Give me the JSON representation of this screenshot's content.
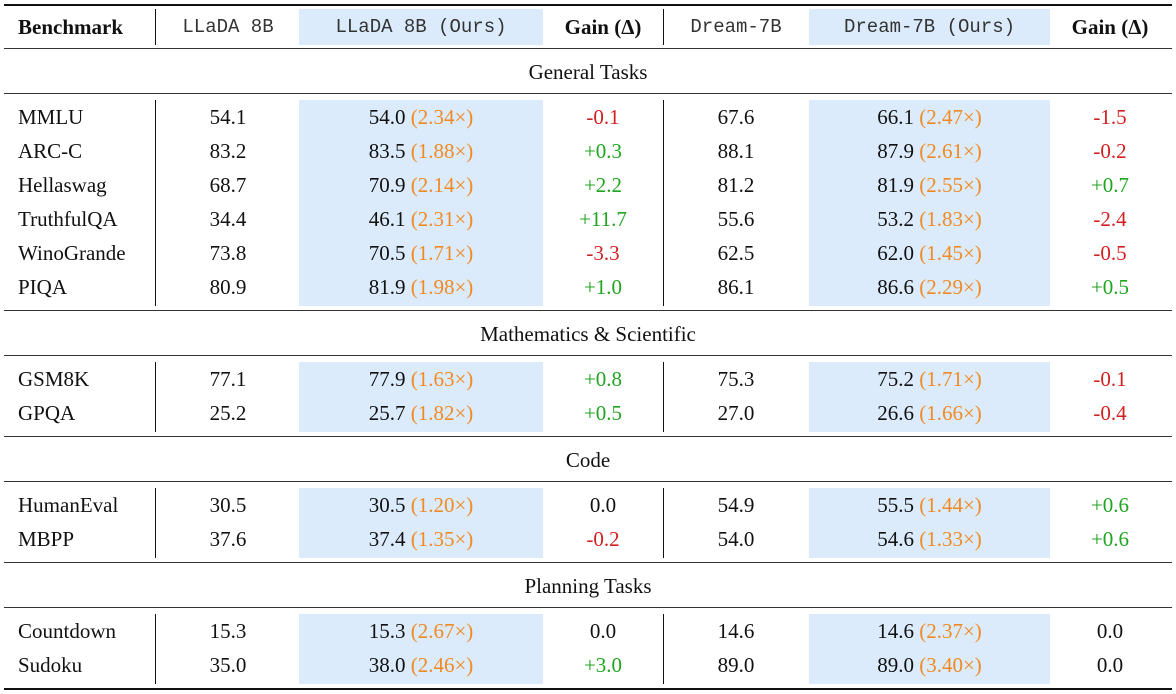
{
  "table": {
    "headers": {
      "benchmark": "Benchmark",
      "llada": "LLaDA 8B",
      "llada_ours": "LLaDA 8B (Ours)",
      "gain1": "Gain (Δ)",
      "dream": "Dream-7B",
      "dream_ours": "Dream-7B (Ours)",
      "gain2": "Gain (Δ)"
    },
    "sections": [
      {
        "title": "General Tasks",
        "rows": [
          {
            "name": "MMLU",
            "llada": "54.1",
            "llada_ours": "54.0",
            "llada_speed": "(2.34×)",
            "gain1": "-0.1",
            "dream": "67.6",
            "dream_ours": "66.1",
            "dream_speed": "(2.47×)",
            "gain2": "-1.5"
          },
          {
            "name": "ARC-C",
            "llada": "83.2",
            "llada_ours": "83.5",
            "llada_speed": "(1.88×)",
            "gain1": "+0.3",
            "dream": "88.1",
            "dream_ours": "87.9",
            "dream_speed": "(2.61×)",
            "gain2": "-0.2"
          },
          {
            "name": "Hellaswag",
            "llada": "68.7",
            "llada_ours": "70.9",
            "llada_speed": "(2.14×)",
            "gain1": "+2.2",
            "dream": "81.2",
            "dream_ours": "81.9",
            "dream_speed": "(2.55×)",
            "gain2": "+0.7"
          },
          {
            "name": "TruthfulQA",
            "llada": "34.4",
            "llada_ours": "46.1",
            "llada_speed": "(2.31×)",
            "gain1": "+11.7",
            "dream": "55.6",
            "dream_ours": "53.2",
            "dream_speed": "(1.83×)",
            "gain2": "-2.4"
          },
          {
            "name": "WinoGrande",
            "llada": "73.8",
            "llada_ours": "70.5",
            "llada_speed": "(1.71×)",
            "gain1": "-3.3",
            "dream": "62.5",
            "dream_ours": "62.0",
            "dream_speed": "(1.45×)",
            "gain2": "-0.5"
          },
          {
            "name": "PIQA",
            "llada": "80.9",
            "llada_ours": "81.9",
            "llada_speed": "(1.98×)",
            "gain1": "+1.0",
            "dream": "86.1",
            "dream_ours": "86.6",
            "dream_speed": "(2.29×)",
            "gain2": "+0.5"
          }
        ]
      },
      {
        "title": "Mathematics & Scientific",
        "rows": [
          {
            "name": "GSM8K",
            "llada": "77.1",
            "llada_ours": "77.9",
            "llada_speed": "(1.63×)",
            "gain1": "+0.8",
            "dream": "75.3",
            "dream_ours": "75.2",
            "dream_speed": "(1.71×)",
            "gain2": "-0.1"
          },
          {
            "name": "GPQA",
            "llada": "25.2",
            "llada_ours": "25.7",
            "llada_speed": "(1.82×)",
            "gain1": "+0.5",
            "dream": "27.0",
            "dream_ours": "26.6",
            "dream_speed": "(1.66×)",
            "gain2": "-0.4"
          }
        ]
      },
      {
        "title": "Code",
        "rows": [
          {
            "name": "HumanEval",
            "llada": "30.5",
            "llada_ours": "30.5",
            "llada_speed": "(1.20×)",
            "gain1": "0.0",
            "dream": "54.9",
            "dream_ours": "55.5",
            "dream_speed": "(1.44×)",
            "gain2": "+0.6"
          },
          {
            "name": "MBPP",
            "llada": "37.6",
            "llada_ours": "37.4",
            "llada_speed": "(1.35×)",
            "gain1": "-0.2",
            "dream": "54.0",
            "dream_ours": "54.6",
            "dream_speed": "(1.33×)",
            "gain2": "+0.6"
          }
        ]
      },
      {
        "title": "Planning Tasks",
        "rows": [
          {
            "name": "Countdown",
            "llada": "15.3",
            "llada_ours": "15.3",
            "llada_speed": "(2.67×)",
            "gain1": "0.0",
            "dream": "14.6",
            "dream_ours": "14.6",
            "dream_speed": "(2.37×)",
            "gain2": "0.0"
          },
          {
            "name": "Sudoku",
            "llada": "35.0",
            "llada_ours": "38.0",
            "llada_speed": "(2.46×)",
            "gain1": "+3.0",
            "dream": "89.0",
            "dream_ours": "89.0",
            "dream_speed": "(3.40×)",
            "gain2": "0.0"
          }
        ]
      }
    ]
  },
  "colors": {
    "highlight": "#dbebfb",
    "speedup": "#f08a24",
    "positive": "#1fa51f",
    "negative": "#d21f1f"
  }
}
